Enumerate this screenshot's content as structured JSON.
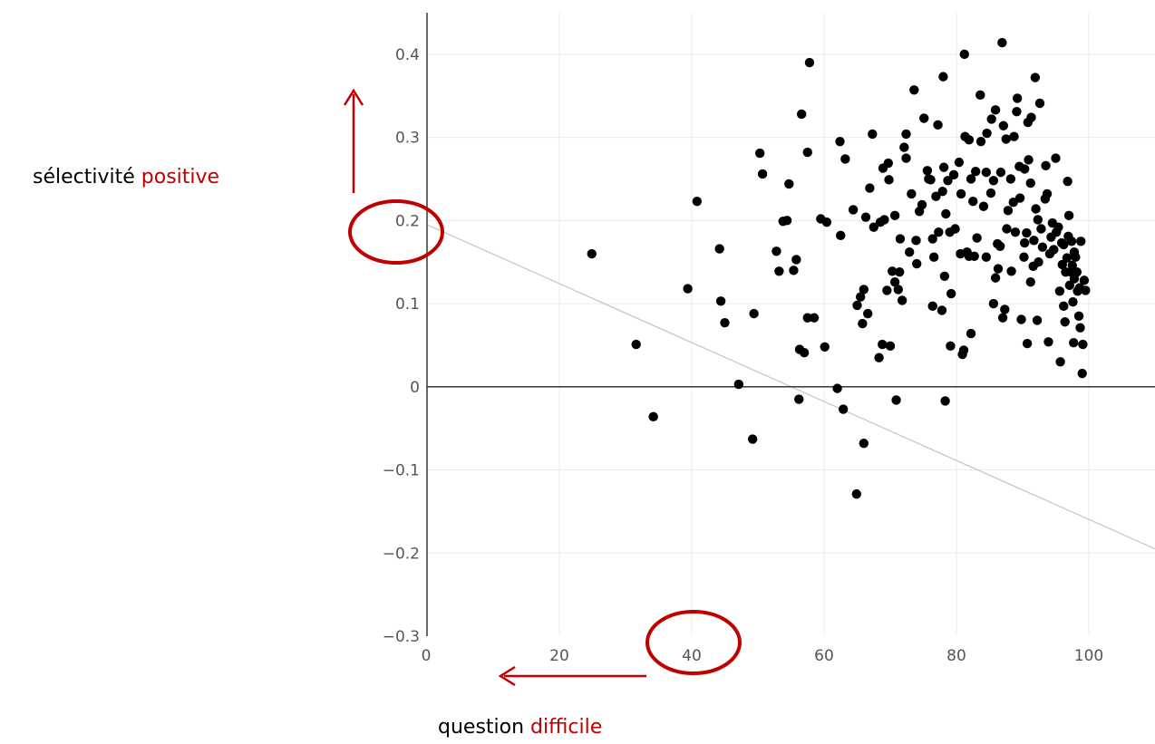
{
  "chart_data": {
    "type": "scatter",
    "title": "",
    "xlabel": "",
    "ylabel": "",
    "xlim": [
      0,
      110
    ],
    "ylim": [
      -0.3,
      0.45
    ],
    "grid": true,
    "x_ticks": [
      {
        "value": 20,
        "label": "20"
      },
      {
        "value": 40,
        "label": "40"
      },
      {
        "value": 60,
        "label": "60"
      },
      {
        "value": 80,
        "label": "80"
      },
      {
        "value": 100,
        "label": "100"
      }
    ],
    "y_ticks": [
      {
        "value": 0.4,
        "label": "0.4"
      },
      {
        "value": 0.3,
        "label": "0.3"
      },
      {
        "value": 0.2,
        "label": "0.2"
      },
      {
        "value": 0.1,
        "label": "0.1"
      },
      {
        "value": 0,
        "label": "0"
      },
      {
        "value": -0.1,
        "label": "−0.1"
      },
      {
        "value": -0.2,
        "label": "−0.2"
      },
      {
        "value": -0.3,
        "label": "−0.3"
      }
    ],
    "origin_x_label": "0",
    "trend_line": {
      "from": [
        0,
        0.195
      ],
      "to": [
        110,
        -0.195
      ]
    },
    "colors": {
      "points": "#000000",
      "annotation": "#c00000",
      "trend": "#c8c8c8",
      "grid": "#ebebeb",
      "axis": "#444444"
    },
    "points": [
      [
        24.9,
        0.16
      ],
      [
        31.6,
        0.051
      ],
      [
        34.2,
        -0.036
      ],
      [
        39.4,
        0.118
      ],
      [
        40.8,
        0.223
      ],
      [
        44.2,
        0.166
      ],
      [
        44.4,
        0.103
      ],
      [
        45.0,
        0.077
      ],
      [
        47.1,
        0.003
      ],
      [
        49.2,
        -0.063
      ],
      [
        49.4,
        0.088
      ],
      [
        50.3,
        0.281
      ],
      [
        50.7,
        0.256
      ],
      [
        52.8,
        0.163
      ],
      [
        53.2,
        0.139
      ],
      [
        53.8,
        0.199
      ],
      [
        54.4,
        0.2
      ],
      [
        54.7,
        0.244
      ],
      [
        55.4,
        0.14
      ],
      [
        55.8,
        0.153
      ],
      [
        56.3,
        0.045
      ],
      [
        56.2,
        -0.015
      ],
      [
        56.6,
        0.328
      ],
      [
        57.0,
        0.041
      ],
      [
        57.5,
        0.083
      ],
      [
        57.5,
        0.282
      ],
      [
        57.8,
        0.39
      ],
      [
        58.5,
        0.083
      ],
      [
        59.5,
        0.202
      ],
      [
        60.1,
        0.048
      ],
      [
        60.4,
        0.198
      ],
      [
        62.0,
        -0.002
      ],
      [
        62.4,
        0.295
      ],
      [
        62.5,
        0.182
      ],
      [
        62.9,
        -0.027
      ],
      [
        63.2,
        0.274
      ],
      [
        64.4,
        0.213
      ],
      [
        64.9,
        -0.129
      ],
      [
        65.0,
        0.098
      ],
      [
        65.5,
        0.108
      ],
      [
        65.8,
        0.076
      ],
      [
        66.0,
        0.117
      ],
      [
        66.0,
        -0.068
      ],
      [
        66.3,
        0.204
      ],
      [
        66.6,
        0.088
      ],
      [
        66.9,
        0.239
      ],
      [
        67.3,
        0.304
      ],
      [
        67.5,
        0.192
      ],
      [
        68.3,
        0.035
      ],
      [
        68.5,
        0.198
      ],
      [
        68.8,
        0.051
      ],
      [
        68.9,
        0.263
      ],
      [
        69.1,
        0.201
      ],
      [
        69.5,
        0.116
      ],
      [
        69.7,
        0.269
      ],
      [
        69.8,
        0.249
      ],
      [
        70.0,
        0.049
      ],
      [
        70.3,
        0.139
      ],
      [
        70.7,
        0.126
      ],
      [
        70.7,
        0.206
      ],
      [
        70.9,
        -0.016
      ],
      [
        71.2,
        0.117
      ],
      [
        71.4,
        0.138
      ],
      [
        71.5,
        0.178
      ],
      [
        71.8,
        0.104
      ],
      [
        72.1,
        0.288
      ],
      [
        72.4,
        0.304
      ],
      [
        72.4,
        0.275
      ],
      [
        72.9,
        0.162
      ],
      [
        73.2,
        0.232
      ],
      [
        73.6,
        0.357
      ],
      [
        73.9,
        0.176
      ],
      [
        74.0,
        0.148
      ],
      [
        74.4,
        0.211
      ],
      [
        74.8,
        0.219
      ],
      [
        75.1,
        0.323
      ],
      [
        75.6,
        0.26
      ],
      [
        75.8,
        0.25
      ],
      [
        76.1,
        0.249
      ],
      [
        76.4,
        0.178
      ],
      [
        76.4,
        0.097
      ],
      [
        76.6,
        0.156
      ],
      [
        76.9,
        0.229
      ],
      [
        77.2,
        0.315
      ],
      [
        77.3,
        0.186
      ],
      [
        77.8,
        0.092
      ],
      [
        77.9,
        0.235
      ],
      [
        78.0,
        0.373
      ],
      [
        78.1,
        0.264
      ],
      [
        78.2,
        0.133
      ],
      [
        78.3,
        -0.017
      ],
      [
        78.4,
        0.208
      ],
      [
        78.7,
        0.248
      ],
      [
        79.0,
        0.186
      ],
      [
        79.1,
        0.049
      ],
      [
        79.2,
        0.112
      ],
      [
        79.6,
        0.255
      ],
      [
        79.8,
        0.19
      ],
      [
        80.4,
        0.27
      ],
      [
        80.6,
        0.16
      ],
      [
        80.7,
        0.232
      ],
      [
        80.9,
        0.039
      ],
      [
        81.1,
        0.044
      ],
      [
        81.2,
        0.4
      ],
      [
        81.3,
        0.301
      ],
      [
        81.6,
        0.162
      ],
      [
        81.9,
        0.157
      ],
      [
        81.9,
        0.297
      ],
      [
        82.2,
        0.25
      ],
      [
        82.2,
        0.064
      ],
      [
        82.5,
        0.223
      ],
      [
        82.7,
        0.157
      ],
      [
        82.9,
        0.259
      ],
      [
        83.1,
        0.179
      ],
      [
        83.6,
        0.351
      ],
      [
        83.7,
        0.295
      ],
      [
        84.1,
        0.217
      ],
      [
        84.5,
        0.156
      ],
      [
        84.5,
        0.258
      ],
      [
        84.6,
        0.305
      ],
      [
        85.2,
        0.233
      ],
      [
        85.3,
        0.322
      ],
      [
        85.6,
        0.248
      ],
      [
        85.6,
        0.1
      ],
      [
        85.9,
        0.333
      ],
      [
        85.9,
        0.131
      ],
      [
        86.2,
        0.172
      ],
      [
        86.3,
        0.142
      ],
      [
        86.6,
        0.169
      ],
      [
        86.7,
        0.258
      ],
      [
        86.9,
        0.414
      ],
      [
        87.0,
        0.083
      ],
      [
        87.1,
        0.314
      ],
      [
        87.3,
        0.093
      ],
      [
        87.5,
        0.298
      ],
      [
        87.6,
        0.19
      ],
      [
        87.8,
        0.212
      ],
      [
        88.2,
        0.25
      ],
      [
        88.3,
        0.139
      ],
      [
        88.6,
        0.222
      ],
      [
        88.7,
        0.301
      ],
      [
        88.9,
        0.186
      ],
      [
        89.1,
        0.331
      ],
      [
        89.2,
        0.347
      ],
      [
        89.5,
        0.265
      ],
      [
        89.6,
        0.227
      ],
      [
        89.8,
        0.081
      ],
      [
        90.2,
        0.156
      ],
      [
        90.3,
        0.173
      ],
      [
        90.3,
        0.262
      ],
      [
        90.6,
        0.185
      ],
      [
        90.7,
        0.052
      ],
      [
        90.8,
        0.318
      ],
      [
        90.9,
        0.273
      ],
      [
        91.2,
        0.245
      ],
      [
        91.2,
        0.126
      ],
      [
        91.3,
        0.324
      ],
      [
        91.6,
        0.145
      ],
      [
        91.7,
        0.176
      ],
      [
        91.9,
        0.372
      ],
      [
        92.0,
        0.214
      ],
      [
        92.2,
        0.08
      ],
      [
        92.3,
        0.201
      ],
      [
        92.4,
        0.15
      ],
      [
        92.6,
        0.341
      ],
      [
        92.8,
        0.19
      ],
      [
        93.0,
        0.168
      ],
      [
        93.4,
        0.226
      ],
      [
        93.5,
        0.266
      ],
      [
        93.7,
        0.232
      ],
      [
        93.9,
        0.054
      ],
      [
        94.1,
        0.16
      ],
      [
        94.3,
        0.18
      ],
      [
        94.5,
        0.197
      ],
      [
        94.7,
        0.165
      ],
      [
        95.0,
        0.275
      ],
      [
        95.1,
        0.186
      ],
      [
        95.4,
        0.192
      ],
      [
        95.6,
        0.115
      ],
      [
        95.7,
        0.03
      ],
      [
        95.9,
        0.173
      ],
      [
        96.0,
        0.147
      ],
      [
        96.2,
        0.171
      ],
      [
        96.2,
        0.097
      ],
      [
        96.4,
        0.078
      ],
      [
        96.5,
        0.138
      ],
      [
        96.7,
        0.155
      ],
      [
        96.8,
        0.247
      ],
      [
        96.9,
        0.181
      ],
      [
        97.0,
        0.206
      ],
      [
        97.1,
        0.122
      ],
      [
        97.3,
        0.138
      ],
      [
        97.4,
        0.175
      ],
      [
        97.5,
        0.146
      ],
      [
        97.6,
        0.102
      ],
      [
        97.7,
        0.053
      ],
      [
        97.8,
        0.13
      ],
      [
        97.8,
        0.162
      ],
      [
        98.0,
        0.156
      ],
      [
        98.2,
        0.138
      ],
      [
        98.3,
        0.115
      ],
      [
        98.5,
        0.085
      ],
      [
        98.6,
        0.119
      ],
      [
        98.7,
        0.071
      ],
      [
        98.8,
        0.175
      ],
      [
        99.0,
        0.016
      ],
      [
        99.1,
        0.051
      ],
      [
        99.3,
        0.128
      ],
      [
        99.5,
        0.116
      ]
    ]
  },
  "annotations": {
    "y_label_black": "sélectivité ",
    "y_label_red": "positive",
    "x_label_black": "question ",
    "x_label_red": "difficile"
  }
}
